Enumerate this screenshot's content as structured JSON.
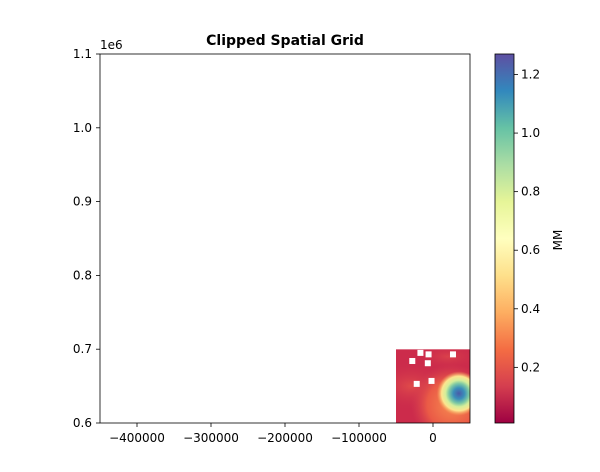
{
  "chart_data": {
    "type": "heatmap",
    "title": "Clipped Spatial Grid",
    "xlabel": "",
    "ylabel": "",
    "xlim": [
      -450000,
      50000
    ],
    "ylim": [
      600000,
      1100000
    ],
    "xticks": [
      -400000,
      -300000,
      -200000,
      -100000,
      0
    ],
    "xtick_labels": [
      "−400000",
      "−300000",
      "−200000",
      "−100000",
      "0"
    ],
    "yticks": [
      600000,
      700000,
      800000,
      900000,
      1000000,
      1100000
    ],
    "ytick_labels": [
      "0.6",
      "0.7",
      "0.8",
      "0.9",
      "1.0",
      "1.1"
    ],
    "y_offset_label": "1e6",
    "grid": false,
    "data_extent": {
      "x": [
        -50000,
        50000
      ],
      "y": [
        600000,
        700000
      ]
    },
    "colormap": "Spectral",
    "colorbar": {
      "label": "MM",
      "range": [
        0.01,
        1.27
      ],
      "ticks": [
        0.2,
        0.4,
        0.6,
        0.8,
        1.0,
        1.2
      ],
      "tick_labels": [
        "0.2",
        "0.4",
        "0.6",
        "0.8",
        "1.0",
        "1.2"
      ]
    },
    "value_features": [
      {
        "name": "background",
        "value": 0.12
      },
      {
        "name": "hotspot",
        "x": 35000,
        "y": 640000,
        "value": 1.2
      },
      {
        "name": "bottom-right-gradient",
        "x": 25000,
        "y": 625000,
        "value": 0.5
      },
      {
        "name": "left-band",
        "x": -30000,
        "y": 650000,
        "value": 0.25
      },
      {
        "name": "upper-band",
        "x": 20000,
        "y": 690000,
        "value": 0.22
      }
    ],
    "nodata_cells": [
      {
        "x": -17000,
        "y": 695000
      },
      {
        "x": -6000,
        "y": 693000
      },
      {
        "x": 27000,
        "y": 693000
      },
      {
        "x": -28000,
        "y": 684000
      },
      {
        "x": -7000,
        "y": 681000
      },
      {
        "x": -2000,
        "y": 657000
      },
      {
        "x": -22000,
        "y": 653000
      }
    ]
  }
}
